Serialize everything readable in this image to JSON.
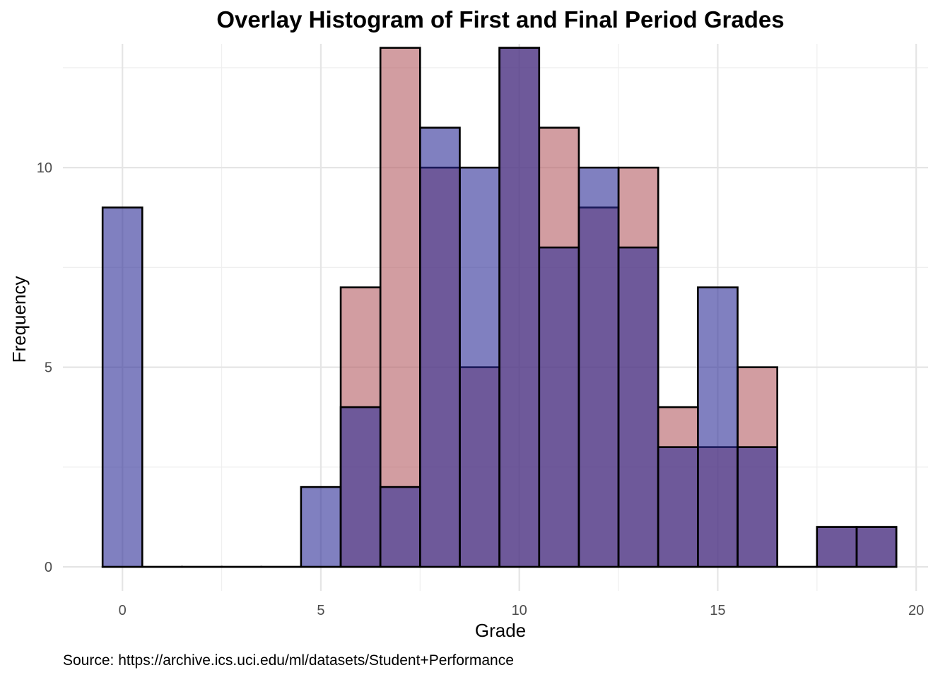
{
  "chart_data": {
    "type": "histogram",
    "title": "Overlay Histogram of First and Final Period Grades",
    "xlabel": "Grade",
    "ylabel": "Frequency",
    "caption": "Source: https://archive.ics.uci.edu/ml/datasets/Student+Performance",
    "xlim": [
      -1.5,
      20.3
    ],
    "ylim": [
      -0.6,
      13.1
    ],
    "x_ticks": [
      0,
      5,
      10,
      15,
      20
    ],
    "y_ticks": [
      0,
      5,
      10
    ],
    "bin_width": 1,
    "bins": [
      0,
      1,
      2,
      3,
      4,
      5,
      6,
      7,
      8,
      9,
      10,
      11,
      12,
      13,
      14,
      15,
      16,
      17,
      18,
      19
    ],
    "grid": true,
    "legend": "none",
    "series": [
      {
        "color": "#b45c62",
        "values": [
          0,
          0,
          0,
          0,
          0,
          0,
          7,
          13,
          10,
          5,
          13,
          11,
          9,
          10,
          4,
          3,
          5,
          0,
          1,
          1
        ]
      },
      {
        "color": "#2c2c96",
        "values": [
          9,
          0,
          0,
          0,
          0,
          2,
          4,
          2,
          11,
          10,
          13,
          8,
          10,
          8,
          3,
          7,
          3,
          0,
          1,
          1
        ]
      }
    ],
    "fill_opacity": 0.6,
    "overlap_color": "#5b3b77",
    "bar_outline_color": "#000000"
  }
}
